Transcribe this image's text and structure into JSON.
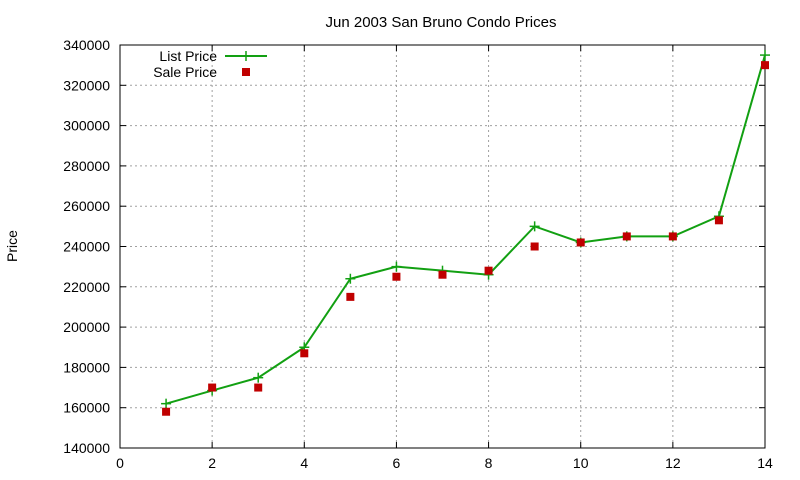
{
  "chart_data": {
    "type": "line",
    "title": "Jun 2003 San Bruno Condo Prices",
    "xlabel": "",
    "ylabel": "Price",
    "xlim": [
      0,
      14
    ],
    "ylim": [
      140000,
      340000
    ],
    "xticks": [
      0,
      2,
      4,
      6,
      8,
      10,
      12,
      14
    ],
    "yticks": [
      140000,
      160000,
      180000,
      200000,
      220000,
      240000,
      260000,
      280000,
      300000,
      320000,
      340000
    ],
    "grid": true,
    "legend": "top-left",
    "series": [
      {
        "name": "List Price",
        "style": "lines+points",
        "marker": "plus",
        "color": "#12a012",
        "x": [
          1,
          2,
          3,
          4,
          5,
          6,
          7,
          8,
          9,
          10,
          11,
          12,
          13,
          14
        ],
        "y": [
          162000,
          168500,
          174900,
          190000,
          224000,
          230000,
          228000,
          226000,
          250000,
          242000,
          245000,
          245000,
          255000,
          335000
        ]
      },
      {
        "name": "Sale Price",
        "style": "points",
        "marker": "square",
        "color": "#c00000",
        "x": [
          1,
          2,
          3,
          4,
          5,
          6,
          7,
          8,
          9,
          10,
          11,
          12,
          13,
          14
        ],
        "y": [
          158000,
          170000,
          170000,
          187000,
          215000,
          225000,
          226000,
          228000,
          240000,
          242000,
          245000,
          245000,
          253000,
          330000
        ]
      }
    ]
  }
}
